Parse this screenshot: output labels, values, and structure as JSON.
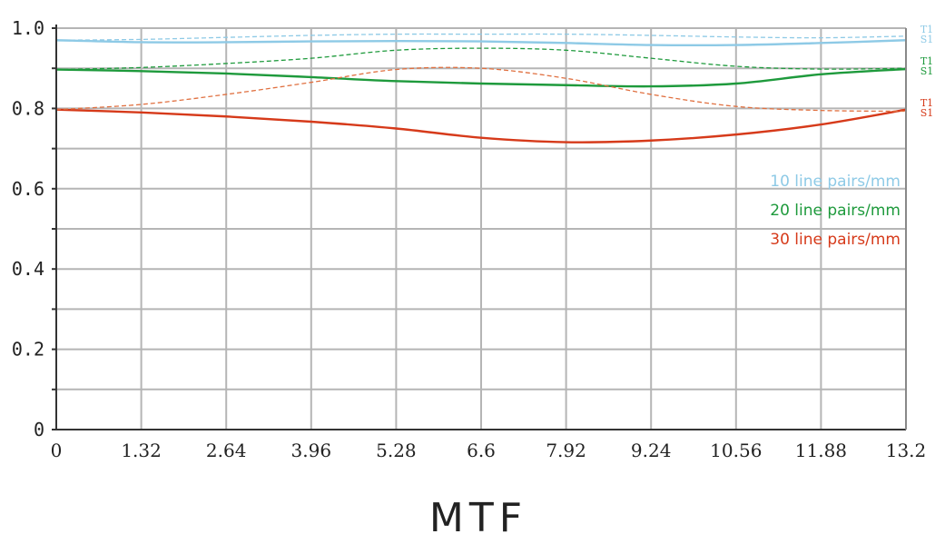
{
  "chart_data": {
    "type": "line",
    "title": "MTF",
    "xlabel": "",
    "ylabel": "",
    "xlim": [
      0,
      13.2
    ],
    "ylim": [
      0,
      1.0
    ],
    "x_ticks": [
      "0",
      "1.32",
      "2.64",
      "3.96",
      "5.28",
      "6.6",
      "7.92",
      "9.24",
      "10.56",
      "11.88",
      "13.2"
    ],
    "y_ticks": [
      "0",
      "0.2",
      "0.4",
      "0.6",
      "0.8",
      "1.0"
    ],
    "grid": true,
    "legend_position": "right",
    "legend": [
      {
        "label": "10 line pairs/mm",
        "color": "#8ecae6"
      },
      {
        "label": "20 line pairs/mm",
        "color": "#1e9a3c"
      },
      {
        "label": "30 line pairs/mm",
        "color": "#d63a1a"
      }
    ],
    "end_labels": [
      {
        "lines": [
          "T1",
          "S1"
        ],
        "color": "#8ecae6"
      },
      {
        "lines": [
          "T1",
          "S1"
        ],
        "color": "#1e9a3c"
      },
      {
        "lines": [
          "T1",
          "S1"
        ],
        "color": "#d63a1a"
      }
    ],
    "x": [
      0,
      1.32,
      2.64,
      3.96,
      5.28,
      6.6,
      7.92,
      9.24,
      10.56,
      11.88,
      13.2
    ],
    "series": [
      {
        "frequency": "10 line pairs/mm",
        "type": "S1",
        "color": "#8ecae6",
        "style": "solid",
        "values": [
          0.97,
          0.965,
          0.965,
          0.967,
          0.968,
          0.967,
          0.963,
          0.958,
          0.958,
          0.963,
          0.97
        ]
      },
      {
        "frequency": "10 line pairs/mm",
        "type": "T1",
        "color": "#8ecae6",
        "style": "dashed",
        "values": [
          0.97,
          0.972,
          0.977,
          0.982,
          0.985,
          0.985,
          0.985,
          0.982,
          0.978,
          0.976,
          0.98
        ]
      },
      {
        "frequency": "20 line pairs/mm",
        "type": "S1",
        "color": "#1e9a3c",
        "style": "solid",
        "values": [
          0.897,
          0.893,
          0.887,
          0.878,
          0.868,
          0.862,
          0.858,
          0.855,
          0.862,
          0.885,
          0.898
        ]
      },
      {
        "frequency": "20 line pairs/mm",
        "type": "T1",
        "color": "#1e9a3c",
        "style": "dashed",
        "values": [
          0.897,
          0.902,
          0.912,
          0.925,
          0.945,
          0.95,
          0.945,
          0.925,
          0.905,
          0.898,
          0.9
        ]
      },
      {
        "frequency": "30 line pairs/mm",
        "type": "S1",
        "color": "#d63a1a",
        "style": "solid",
        "values": [
          0.797,
          0.79,
          0.78,
          0.767,
          0.75,
          0.727,
          0.716,
          0.72,
          0.735,
          0.76,
          0.797
        ]
      },
      {
        "frequency": "30 line pairs/mm",
        "type": "T1",
        "color": "#e07040",
        "style": "dashed",
        "values": [
          0.797,
          0.81,
          0.835,
          0.865,
          0.897,
          0.9,
          0.875,
          0.835,
          0.805,
          0.795,
          0.793
        ]
      }
    ]
  }
}
